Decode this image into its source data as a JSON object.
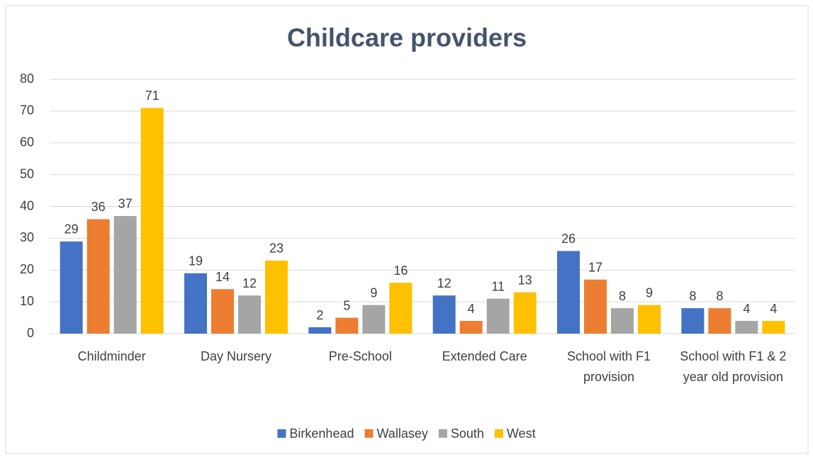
{
  "chart_data": {
    "type": "bar",
    "title": "Childcare providers",
    "categories": [
      "Childminder",
      "Day Nursery",
      "Pre-School",
      "Extended Care",
      "School with F1 provision",
      "School with F1 & 2 year old provision"
    ],
    "series": [
      {
        "name": "Birkenhead",
        "color": "#4472c4",
        "values": [
          29,
          19,
          2,
          12,
          26,
          8
        ]
      },
      {
        "name": "Wallasey",
        "color": "#ed7d31",
        "values": [
          36,
          14,
          5,
          4,
          17,
          8
        ]
      },
      {
        "name": "South",
        "color": "#a5a5a5",
        "values": [
          37,
          12,
          9,
          11,
          8,
          4
        ]
      },
      {
        "name": "West",
        "color": "#ffc000",
        "values": [
          71,
          23,
          16,
          13,
          9,
          4
        ]
      }
    ],
    "ylim": [
      0,
      80
    ],
    "yticks": [
      0,
      10,
      20,
      30,
      40,
      50,
      60,
      70,
      80
    ],
    "grid": true,
    "legend": "bottom"
  }
}
